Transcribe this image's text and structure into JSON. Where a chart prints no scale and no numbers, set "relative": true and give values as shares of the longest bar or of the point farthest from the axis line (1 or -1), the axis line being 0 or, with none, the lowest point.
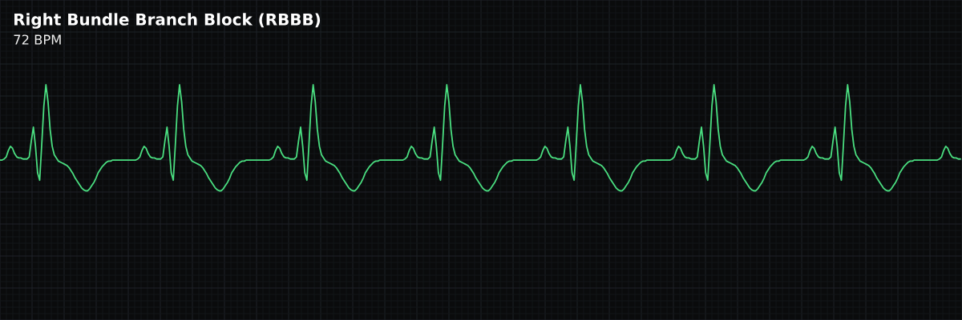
{
  "chart_data": {
    "type": "line",
    "title": "Right Bundle Branch Block (RBBB)",
    "subtitle": "72 BPM",
    "relative": true,
    "grid": true,
    "marker": "none",
    "line_style": "solid",
    "categories": [
      null,
      null,
      null,
      null,
      null,
      null,
      null,
      null,
      null,
      null,
      null,
      null,
      null,
      null,
      null,
      null,
      null,
      null,
      null,
      null,
      null,
      null,
      null,
      null,
      null,
      null,
      null,
      null,
      null,
      null,
      null,
      null,
      null,
      null,
      null,
      null,
      null,
      null,
      null,
      null,
      null,
      null,
      null,
      null,
      null,
      null,
      null,
      null,
      null,
      null,
      null,
      null,
      null,
      null,
      null,
      null,
      null,
      null,
      null,
      null,
      null,
      null,
      null,
      null,
      null,
      null,
      null,
      null,
      null,
      null,
      null,
      null,
      null,
      null,
      null,
      null,
      null,
      null,
      null,
      null,
      null,
      null,
      null,
      null,
      null,
      null,
      null,
      null,
      null,
      null,
      null,
      null,
      null,
      null,
      null,
      null,
      null,
      null,
      null,
      null,
      null,
      null,
      null,
      null,
      null,
      null,
      null,
      null,
      null,
      null,
      null,
      null,
      null,
      null,
      null,
      null,
      null,
      null,
      null,
      null,
      null,
      null,
      null,
      null,
      null,
      null,
      null,
      null,
      null,
      null,
      null,
      null,
      null,
      null,
      null,
      null,
      null,
      null,
      null,
      null,
      null,
      null,
      null,
      null,
      null,
      null,
      null,
      null,
      null,
      null,
      null,
      null,
      null,
      null,
      null,
      null,
      null,
      null,
      null,
      null,
      null,
      null,
      null,
      null,
      null,
      null,
      null,
      null,
      null,
      null,
      null,
      null,
      null,
      null,
      null,
      null,
      null,
      null,
      null,
      null,
      null,
      null,
      null,
      null,
      null,
      null,
      null,
      null,
      null,
      null,
      null,
      null,
      null,
      null,
      null,
      null,
      null,
      null,
      null,
      null,
      null,
      null,
      null,
      null,
      null,
      null,
      null,
      null,
      null,
      null,
      null,
      null,
      null,
      null,
      null,
      null,
      null,
      null,
      null,
      null,
      null,
      null,
      null,
      null,
      null,
      null,
      null,
      null,
      null,
      null,
      null,
      null,
      null,
      null,
      null,
      null,
      null,
      null,
      null,
      null,
      null,
      null,
      null,
      null,
      null,
      null,
      null,
      null,
      null,
      null,
      null,
      null,
      null,
      null,
      null,
      null,
      null,
      null,
      null,
      null,
      null,
      null,
      null,
      null,
      null,
      null,
      null,
      null,
      null,
      null,
      null,
      null,
      null,
      null,
      null,
      null,
      null,
      null,
      null,
      null,
      null,
      null,
      null,
      null,
      null,
      null,
      null,
      null,
      null,
      null,
      null,
      null,
      null,
      null,
      null,
      null,
      null,
      null,
      null,
      null,
      null,
      null,
      null,
      null,
      null,
      null,
      null,
      null,
      null,
      null,
      null,
      null,
      null,
      null,
      null,
      null,
      null,
      null,
      null,
      null,
      null,
      null,
      null,
      null,
      null,
      null,
      null,
      null,
      null,
      null,
      null,
      null,
      null,
      null,
      null,
      null,
      null,
      null,
      null,
      null,
      null,
      null,
      null,
      null,
      null,
      null,
      null,
      null,
      null,
      null,
      null,
      null,
      null,
      null,
      null,
      null,
      null,
      null,
      null,
      null,
      null,
      null,
      null,
      null,
      null,
      null,
      null,
      null,
      null,
      null,
      null,
      null,
      null,
      null,
      null,
      null,
      null,
      null,
      null,
      null,
      null,
      null,
      null,
      null,
      null,
      null,
      null,
      null,
      null,
      null,
      null,
      null,
      null,
      null,
      null,
      null,
      null,
      null,
      null,
      null,
      null,
      null,
      null,
      null,
      null,
      null,
      null,
      null,
      null,
      null,
      null,
      null,
      null,
      null,
      null,
      null,
      null,
      null,
      null,
      null,
      null,
      null,
      null,
      null,
      null,
      null,
      null,
      null,
      null,
      null,
      null,
      null,
      null,
      null,
      null,
      null,
      null,
      null,
      null,
      null,
      null,
      null,
      null,
      null,
      null,
      null,
      null,
      null,
      null,
      null,
      null,
      null,
      null,
      null,
      null,
      null,
      null,
      null,
      null,
      null,
      null
    ],
    "series": [
      {
        "color": "#4ade80",
        "values": [
          0.29,
          0.29,
          0.3,
          0.32,
          0.38,
          0.42,
          0.4,
          0.35,
          0.32,
          0.31,
          0.31,
          0.3,
          0.3,
          0.3,
          0.32,
          0.47,
          0.6,
          0.42,
          0.17,
          0.1,
          0.44,
          0.8,
          1.0,
          0.84,
          0.58,
          0.42,
          0.34,
          0.31,
          0.28,
          0.27,
          0.26,
          0.25,
          0.24,
          0.22,
          0.19,
          0.16,
          0.12,
          0.09,
          0.06,
          0.03,
          0.01,
          0.0,
          0.0,
          0.02,
          0.05,
          0.08,
          0.12,
          0.17,
          0.2,
          0.23,
          0.25,
          0.27,
          0.28,
          0.28,
          0.29,
          0.29,
          0.29,
          0.29,
          0.29,
          0.29,
          0.29,
          0.29,
          0.29,
          0.29,
          0.29,
          0.29,
          0.3,
          0.32,
          0.38,
          0.42,
          0.4,
          0.35,
          0.32,
          0.31,
          0.31,
          0.3,
          0.3,
          0.3,
          0.32,
          0.47,
          0.6,
          0.42,
          0.17,
          0.1,
          0.44,
          0.8,
          1.0,
          0.84,
          0.58,
          0.42,
          0.34,
          0.31,
          0.28,
          0.27,
          0.26,
          0.25,
          0.24,
          0.22,
          0.19,
          0.16,
          0.12,
          0.09,
          0.06,
          0.03,
          0.01,
          0.0,
          0.0,
          0.02,
          0.05,
          0.08,
          0.12,
          0.17,
          0.2,
          0.23,
          0.25,
          0.27,
          0.28,
          0.28,
          0.29,
          0.29,
          0.29,
          0.29,
          0.29,
          0.29,
          0.29,
          0.29,
          0.29,
          0.29,
          0.29,
          0.29,
          0.3,
          0.32,
          0.38,
          0.42,
          0.4,
          0.35,
          0.32,
          0.31,
          0.31,
          0.3,
          0.3,
          0.3,
          0.32,
          0.47,
          0.6,
          0.42,
          0.17,
          0.1,
          0.44,
          0.8,
          1.0,
          0.84,
          0.58,
          0.42,
          0.34,
          0.31,
          0.28,
          0.27,
          0.26,
          0.25,
          0.24,
          0.22,
          0.19,
          0.16,
          0.12,
          0.09,
          0.06,
          0.03,
          0.01,
          0.0,
          0.0,
          0.02,
          0.05,
          0.08,
          0.12,
          0.17,
          0.2,
          0.23,
          0.25,
          0.27,
          0.28,
          0.28,
          0.29,
          0.29,
          0.29,
          0.29,
          0.29,
          0.29,
          0.29,
          0.29,
          0.29,
          0.29,
          0.29,
          0.29,
          0.3,
          0.32,
          0.38,
          0.42,
          0.4,
          0.35,
          0.32,
          0.31,
          0.31,
          0.3,
          0.3,
          0.3,
          0.32,
          0.47,
          0.6,
          0.42,
          0.17,
          0.1,
          0.44,
          0.8,
          1.0,
          0.84,
          0.58,
          0.42,
          0.34,
          0.31,
          0.28,
          0.27,
          0.26,
          0.25,
          0.24,
          0.22,
          0.19,
          0.16,
          0.12,
          0.09,
          0.06,
          0.03,
          0.01,
          0.0,
          0.0,
          0.02,
          0.05,
          0.08,
          0.12,
          0.17,
          0.2,
          0.23,
          0.25,
          0.27,
          0.28,
          0.28,
          0.29,
          0.29,
          0.29,
          0.29,
          0.29,
          0.29,
          0.29,
          0.29,
          0.29,
          0.29,
          0.29,
          0.29,
          0.3,
          0.32,
          0.38,
          0.42,
          0.4,
          0.35,
          0.32,
          0.31,
          0.31,
          0.3,
          0.3,
          0.3,
          0.32,
          0.47,
          0.6,
          0.42,
          0.17,
          0.1,
          0.44,
          0.8,
          1.0,
          0.84,
          0.58,
          0.42,
          0.34,
          0.31,
          0.28,
          0.27,
          0.26,
          0.25,
          0.24,
          0.22,
          0.19,
          0.16,
          0.12,
          0.09,
          0.06,
          0.03,
          0.01,
          0.0,
          0.0,
          0.02,
          0.05,
          0.08,
          0.12,
          0.17,
          0.2,
          0.23,
          0.25,
          0.27,
          0.28,
          0.28,
          0.29,
          0.29,
          0.29,
          0.29,
          0.29,
          0.29,
          0.29,
          0.29,
          0.29,
          0.29,
          0.29,
          0.29,
          0.3,
          0.32,
          0.38,
          0.42,
          0.4,
          0.35,
          0.32,
          0.31,
          0.31,
          0.3,
          0.3,
          0.3,
          0.32,
          0.47,
          0.6,
          0.42,
          0.17,
          0.1,
          0.44,
          0.8,
          1.0,
          0.84,
          0.58,
          0.42,
          0.34,
          0.31,
          0.28,
          0.27,
          0.26,
          0.25,
          0.24,
          0.22,
          0.19,
          0.16,
          0.12,
          0.09,
          0.06,
          0.03,
          0.01,
          0.0,
          0.0,
          0.02,
          0.05,
          0.08,
          0.12,
          0.17,
          0.2,
          0.23,
          0.25,
          0.27,
          0.28,
          0.28,
          0.29,
          0.29,
          0.29,
          0.29,
          0.29,
          0.29,
          0.29,
          0.29,
          0.29,
          0.29,
          0.29,
          0.29,
          0.3,
          0.32,
          0.38,
          0.42,
          0.4,
          0.35,
          0.32,
          0.31,
          0.31,
          0.3,
          0.3,
          0.3,
          0.32,
          0.47,
          0.6,
          0.42,
          0.17,
          0.1,
          0.44,
          0.8,
          1.0,
          0.84,
          0.58,
          0.42,
          0.34,
          0.31,
          0.28,
          0.27,
          0.26,
          0.25,
          0.24,
          0.22,
          0.19,
          0.16,
          0.12,
          0.09,
          0.06,
          0.03,
          0.01,
          0.0,
          0.0,
          0.02,
          0.05,
          0.08,
          0.12,
          0.17,
          0.2,
          0.23,
          0.25,
          0.27,
          0.28,
          0.28,
          0.29,
          0.29,
          0.29,
          0.29,
          0.29,
          0.29,
          0.29,
          0.29,
          0.29,
          0.29,
          0.29,
          0.29,
          0.3,
          0.32,
          0.38,
          0.42,
          0.4,
          0.35,
          0.32,
          0.31,
          0.31,
          0.3,
          0.3
        ]
      }
    ]
  }
}
